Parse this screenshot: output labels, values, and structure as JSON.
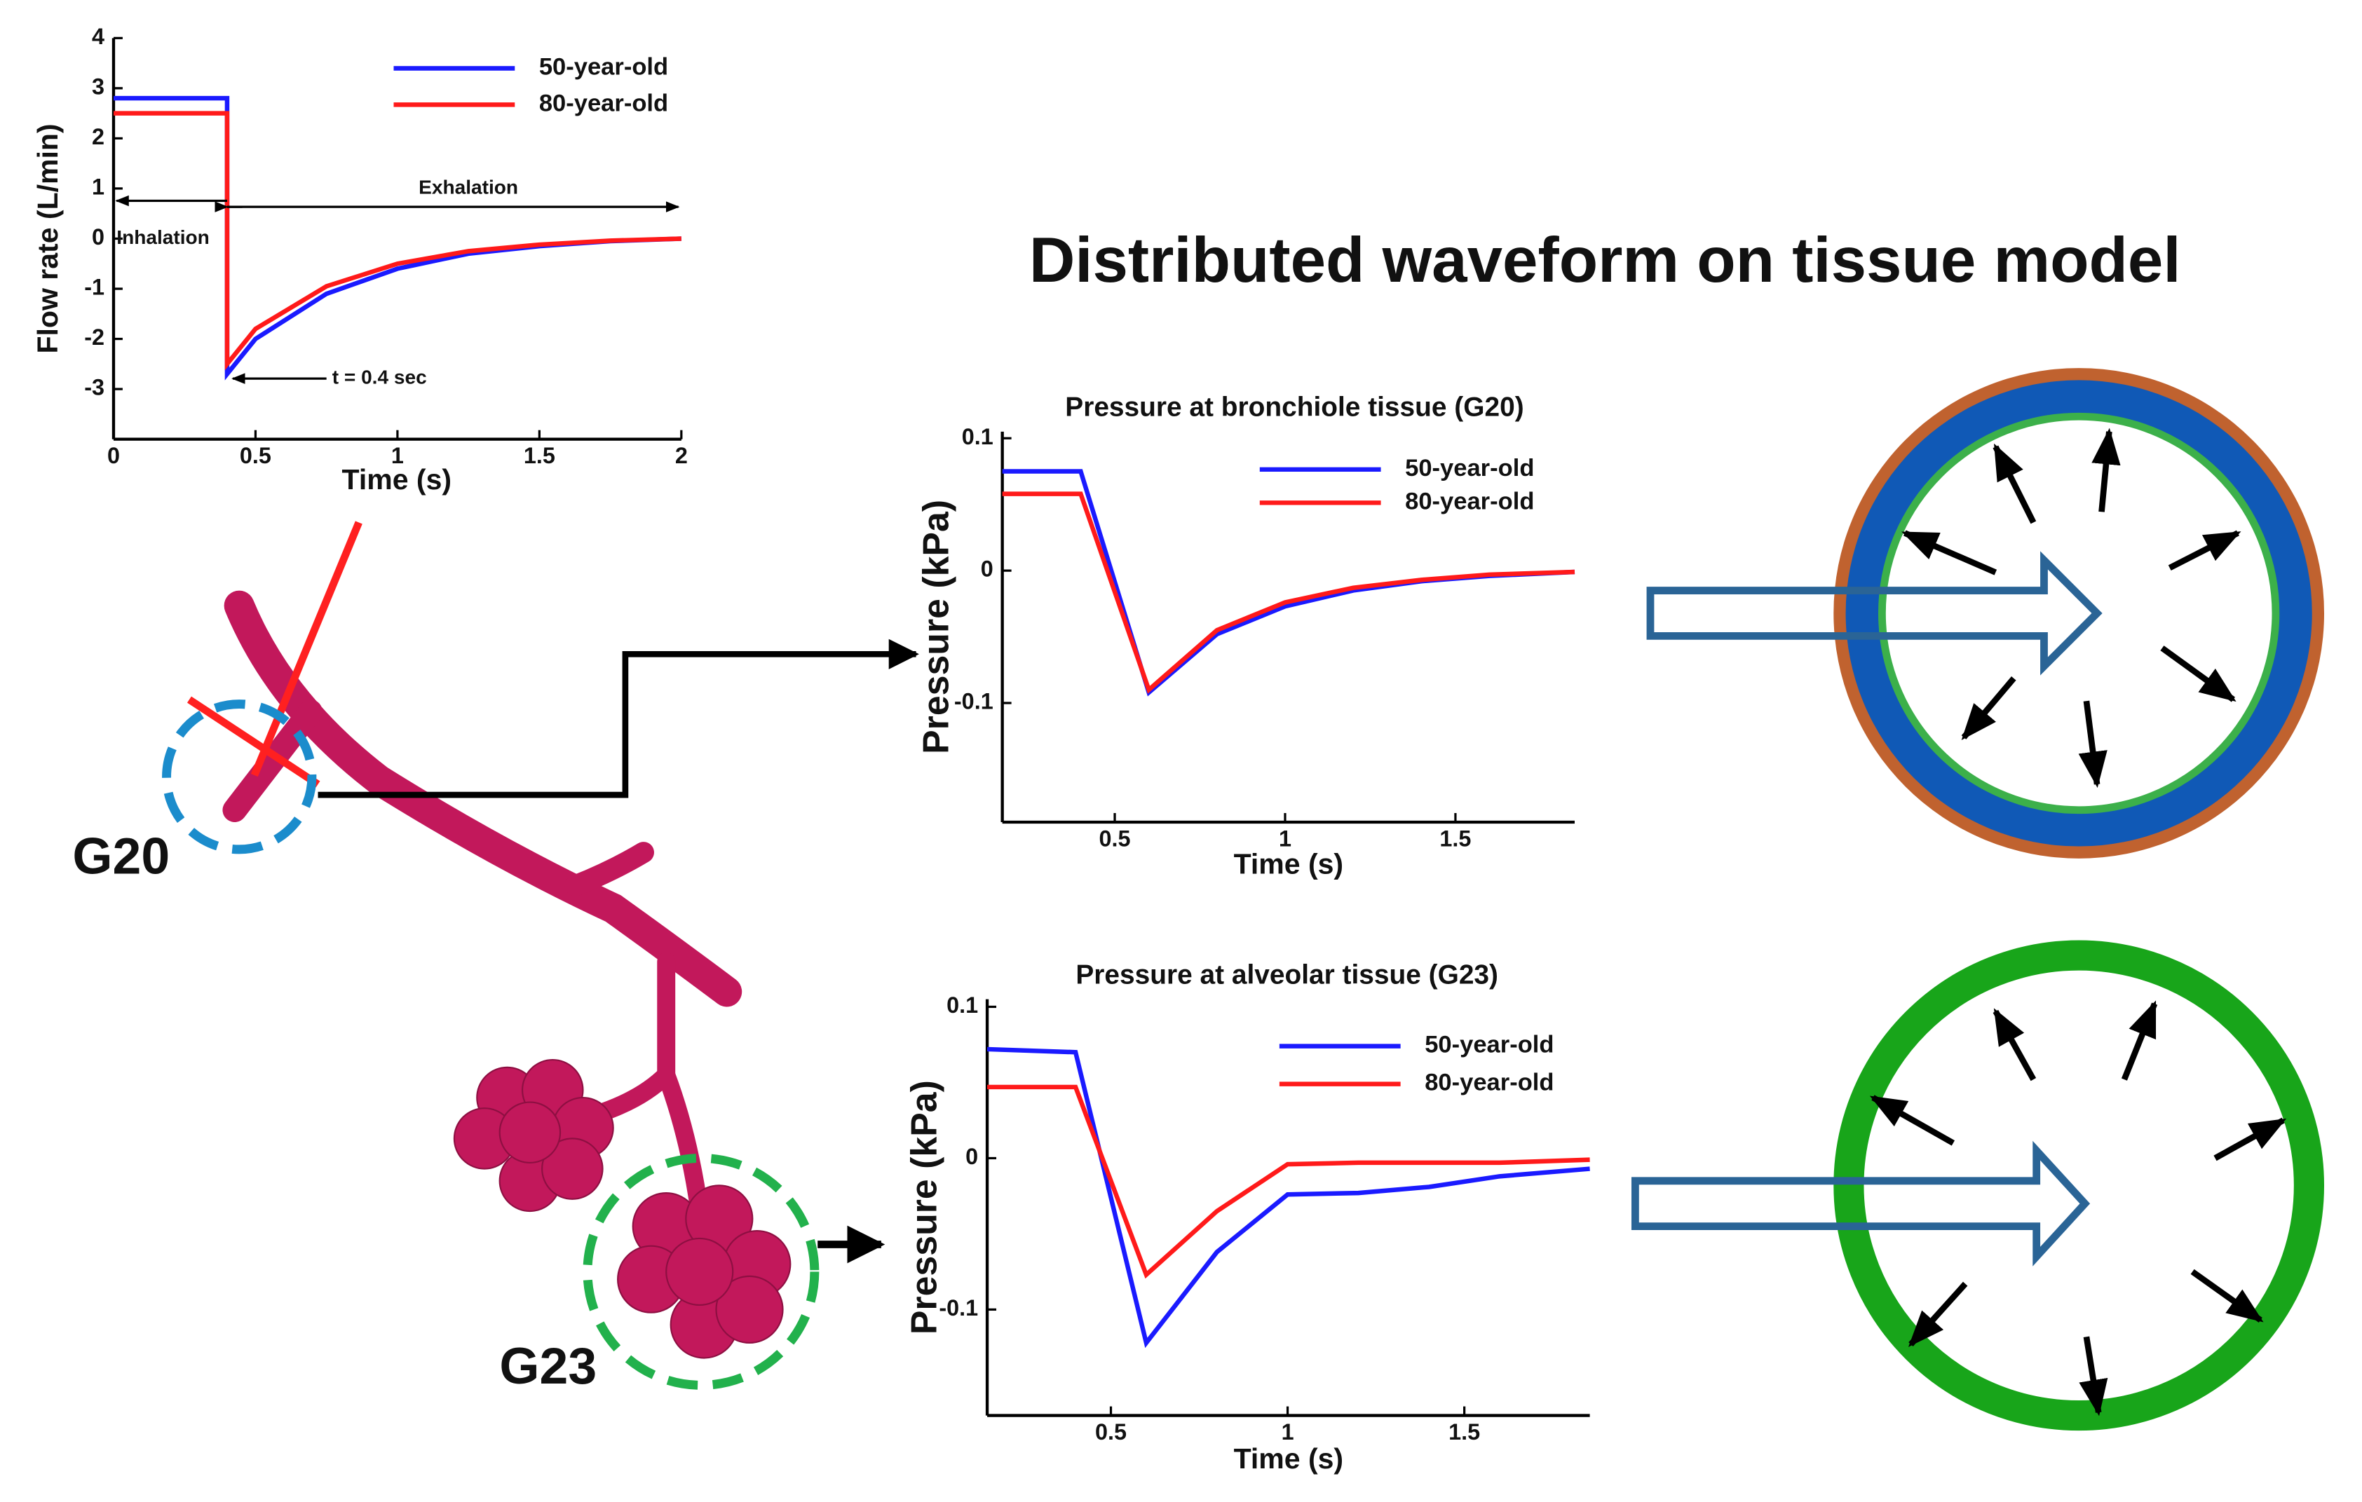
{
  "title": "Distributed waveform on tissue model",
  "labels": [
    "G20",
    "G23"
  ],
  "chart_data": [
    {
      "type": "line",
      "xlabel": "Time (s)",
      "ylabel": "Flow rate (L/min)",
      "annotations": [
        "Inhalation",
        "Exhalation",
        "t = 0.4 sec"
      ],
      "x": [
        0,
        0.4,
        0.4,
        0.5,
        0.75,
        1,
        1.25,
        1.5,
        1.75,
        2
      ],
      "series": [
        {
          "name": "50-year-old",
          "color": "#1a1aff",
          "values": [
            2.8,
            2.8,
            -2.7,
            -2.0,
            -1.1,
            -0.6,
            -0.3,
            -0.15,
            -0.05,
            0
          ]
        },
        {
          "name": "80-year-old",
          "color": "#ff1a1a",
          "values": [
            2.5,
            2.5,
            -2.5,
            -1.8,
            -0.95,
            -0.5,
            -0.25,
            -0.12,
            -0.04,
            0
          ]
        }
      ],
      "xlim": [
        0,
        2
      ],
      "xticks": [
        0,
        0.5,
        1,
        1.5,
        2
      ],
      "ylim": [
        -4,
        4
      ],
      "yticks": [
        -3,
        -2,
        -1,
        0,
        1,
        2,
        3,
        4
      ]
    },
    {
      "type": "line",
      "title": "Pressure at bronchiole tissue (G20)",
      "xlabel": "Time (s)",
      "ylabel": "Pressure (kPa)",
      "x": [
        0.17,
        0.4,
        0.6,
        0.8,
        1,
        1.2,
        1.4,
        1.6,
        1.85
      ],
      "series": [
        {
          "name": "50-year-old",
          "color": "#1a1aff",
          "values": [
            0.075,
            0.075,
            -0.092,
            -0.048,
            -0.027,
            -0.015,
            -0.008,
            -0.004,
            -0.001
          ]
        },
        {
          "name": "80-year-old",
          "color": "#ff1a1a",
          "values": [
            0.058,
            0.058,
            -0.09,
            -0.045,
            -0.024,
            -0.013,
            -0.007,
            -0.003,
            -0.001
          ]
        }
      ],
      "xlim": [
        0.17,
        1.85
      ],
      "xticks": [
        0.5,
        1,
        1.5
      ],
      "ylim": [
        -0.19,
        0.105
      ],
      "yticks": [
        -0.1,
        0,
        0.1
      ]
    },
    {
      "type": "line",
      "title": "Pressure at alveolar tissue (G23)",
      "xlabel": "Time (s)",
      "ylabel": "Pressure (kPa)",
      "x": [
        0.15,
        0.4,
        0.6,
        0.8,
        1,
        1.2,
        1.4,
        1.6,
        1.855
      ],
      "series": [
        {
          "name": "50-year-old",
          "color": "#1a1aff",
          "values": [
            0.072,
            0.07,
            -0.122,
            -0.062,
            -0.024,
            -0.023,
            -0.019,
            -0.012,
            -0.007
          ]
        },
        {
          "name": "80-year-old",
          "color": "#ff1a1a",
          "values": [
            0.047,
            0.047,
            -0.077,
            -0.035,
            -0.004,
            -0.003,
            -0.003,
            -0.003,
            -0.001
          ]
        }
      ],
      "xlim": [
        0.15,
        1.855
      ],
      "xticks": [
        0.5,
        1,
        1.5
      ],
      "ylim": [
        -0.17,
        0.105
      ],
      "yticks": [
        -0.1,
        0,
        0.1
      ]
    }
  ]
}
